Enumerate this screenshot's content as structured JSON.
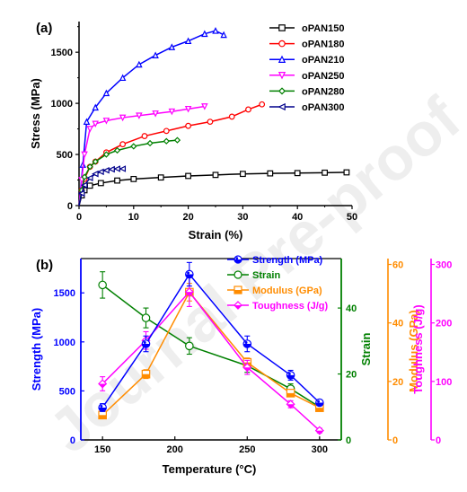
{
  "watermark": "Journal Pre-proof",
  "chart_data": [
    {
      "panel_label": "(a)",
      "type": "line",
      "xlabel": "Strain (%)",
      "ylabel": "Stress (MPa)",
      "xlim": [
        0,
        50
      ],
      "ylim": [
        0,
        1800
      ],
      "xticks": [
        "0",
        "10",
        "20",
        "30",
        "40",
        "50"
      ],
      "yticks": [
        "0",
        "500",
        "1000",
        "1500"
      ],
      "legend": "top-right",
      "series": [
        {
          "name": "oPAN150",
          "color": "#000000",
          "marker": "square",
          "points": [
            [
              0,
              0
            ],
            [
              0.5,
              100
            ],
            [
              1,
              150
            ],
            [
              2,
              195
            ],
            [
              4,
              220
            ],
            [
              7,
              245
            ],
            [
              10,
              260
            ],
            [
              15,
              275
            ],
            [
              20,
              290
            ],
            [
              25,
              300
            ],
            [
              30,
              310
            ],
            [
              35,
              315
            ],
            [
              40,
              318
            ],
            [
              45,
              322
            ],
            [
              49,
              325
            ]
          ]
        },
        {
          "name": "oPAN180",
          "color": "#ff0000",
          "marker": "circle",
          "points": [
            [
              0,
              0
            ],
            [
              0.5,
              150
            ],
            [
              1,
              260
            ],
            [
              2,
              380
            ],
            [
              3,
              430
            ],
            [
              5,
              520
            ],
            [
              8,
              600
            ],
            [
              12,
              680
            ],
            [
              16,
              730
            ],
            [
              20,
              780
            ],
            [
              24,
              820
            ],
            [
              28,
              870
            ],
            [
              31,
              940
            ],
            [
              33.5,
              990
            ]
          ]
        },
        {
          "name": "oPAN210",
          "color": "#0000ff",
          "marker": "triangle-up",
          "points": [
            [
              0,
              0
            ],
            [
              0.7,
              400
            ],
            [
              1.4,
              820
            ],
            [
              3,
              960
            ],
            [
              5,
              1100
            ],
            [
              8,
              1250
            ],
            [
              11,
              1380
            ],
            [
              14,
              1470
            ],
            [
              17,
              1550
            ],
            [
              20,
              1610
            ],
            [
              23,
              1680
            ],
            [
              25,
              1710
            ],
            [
              26.5,
              1670
            ]
          ]
        },
        {
          "name": "oPAN250",
          "color": "#ff00ff",
          "marker": "triangle-down",
          "points": [
            [
              0,
              0
            ],
            [
              0.5,
              250
            ],
            [
              1,
              500
            ],
            [
              2,
              750
            ],
            [
              3,
              800
            ],
            [
              5,
              830
            ],
            [
              8,
              860
            ],
            [
              11,
              880
            ],
            [
              14,
              900
            ],
            [
              17,
              920
            ],
            [
              20,
              945
            ],
            [
              23,
              970
            ]
          ]
        },
        {
          "name": "oPAN280",
          "color": "#008000",
          "marker": "diamond",
          "points": [
            [
              0,
              0
            ],
            [
              0.5,
              150
            ],
            [
              1,
              280
            ],
            [
              2,
              380
            ],
            [
              3,
              430
            ],
            [
              5,
              500
            ],
            [
              7,
              540
            ],
            [
              10,
              580
            ],
            [
              13,
              610
            ],
            [
              16,
              630
            ],
            [
              18,
              640
            ]
          ]
        },
        {
          "name": "oPAN300",
          "color": "#00008b",
          "marker": "triangle-left",
          "points": [
            [
              0,
              0
            ],
            [
              0.5,
              120
            ],
            [
              1,
              200
            ],
            [
              2,
              270
            ],
            [
              3,
              310
            ],
            [
              4,
              330
            ],
            [
              5,
              345
            ],
            [
              6,
              355
            ],
            [
              7,
              360
            ],
            [
              8,
              360
            ]
          ]
        }
      ]
    },
    {
      "panel_label": "(b)",
      "type": "line",
      "xlabel": "Temperature (°C)",
      "x": [
        150,
        180,
        210,
        250,
        280,
        300
      ],
      "xlim": [
        135,
        315
      ],
      "xticks": [
        "150",
        "200",
        "250",
        "300"
      ],
      "legend": "top-right",
      "axes": [
        {
          "label": "Strength (MPa)",
          "side": "left",
          "color": "#0000ff",
          "ylim": [
            0,
            1850
          ],
          "ticks": [
            "0",
            "500",
            "1000",
            "1500"
          ]
        },
        {
          "label": "Strain",
          "side": "right",
          "color": "#008000",
          "ylim": [
            0,
            55
          ],
          "ticks": [
            "0",
            "20",
            "40"
          ]
        },
        {
          "label": "Modulus (GPa)",
          "side": "right",
          "color": "#ff8c00",
          "ylim": [
            0,
            62
          ],
          "ticks": [
            "0",
            "20",
            "40",
            "60"
          ]
        },
        {
          "label": "Toughness (J/g)",
          "side": "right",
          "color": "#ff00ff",
          "ylim": [
            0,
            310
          ],
          "ticks": [
            "0",
            "100",
            "200",
            "300"
          ]
        }
      ],
      "series": [
        {
          "name": "Strength (MPa)",
          "axis": 0,
          "color": "#0000ff",
          "marker": "circle-half",
          "values": [
            330,
            980,
            1690,
            980,
            660,
            380
          ],
          "errors": [
            40,
            80,
            120,
            80,
            50,
            30
          ]
        },
        {
          "name": "Strain",
          "axis": 1,
          "color": "#008000",
          "marker": "circle-open",
          "values": [
            47,
            37,
            28.5,
            22.5,
            15.5,
            10
          ],
          "errors": [
            4,
            3,
            2.5,
            2,
            1.5,
            1
          ]
        },
        {
          "name": "Modulus (GPa)",
          "axis": 2,
          "color": "#ff8c00",
          "marker": "square-half",
          "values": [
            8.5,
            22.5,
            50.5,
            26.5,
            16,
            11
          ],
          "errors": [
            0.8,
            1.5,
            3,
            1.5,
            1,
            1
          ]
        },
        {
          "name": "Toughness (J/g)",
          "axis": 3,
          "color": "#ff00ff",
          "marker": "diamond-half",
          "values": [
            96,
            170,
            253,
            124,
            61,
            16
          ],
          "errors": [
            12,
            15,
            25,
            12,
            6,
            4
          ]
        }
      ]
    }
  ]
}
